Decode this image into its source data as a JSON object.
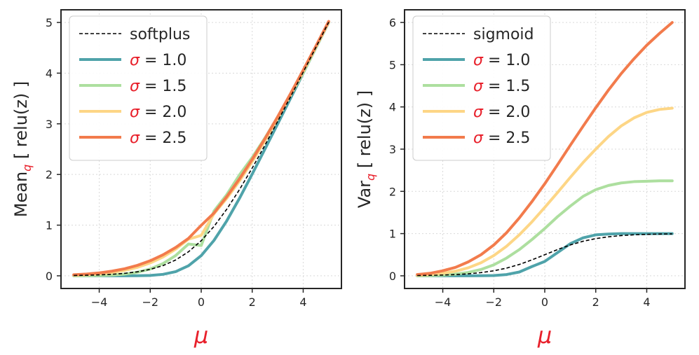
{
  "chart_data": [
    {
      "type": "line",
      "panel": "left",
      "ylabel_prefix": "Mean",
      "ylabel_sub": "q",
      "ylabel_suffix": " [ relu(z) ]",
      "xlabel": "μ",
      "xlim": [
        -5.5,
        5.5
      ],
      "ylim": [
        -0.25,
        5.25
      ],
      "xticks": [
        -4,
        -2,
        0,
        2,
        4
      ],
      "xtick_labels": [
        "−4",
        "−2",
        "0",
        "2",
        "4"
      ],
      "yticks": [
        0,
        1,
        2,
        3,
        4,
        5
      ],
      "ytick_labels": [
        "0",
        "1",
        "2",
        "3",
        "4",
        "5"
      ],
      "grid": true,
      "legend_position": "top-left",
      "x": [
        -5,
        -4.5,
        -4,
        -3.5,
        -3,
        -2.5,
        -2,
        -1.5,
        -1,
        -0.5,
        0,
        0.5,
        1,
        1.5,
        2,
        2.5,
        3,
        3.5,
        4,
        4.5,
        5
      ],
      "series": [
        {
          "name": "softplus",
          "legend_label": "softplus",
          "color": "#000000",
          "style": "dashed",
          "values": [
            0.007,
            0.011,
            0.018,
            0.03,
            0.049,
            0.079,
            0.127,
            0.201,
            0.313,
            0.474,
            0.693,
            0.974,
            1.313,
            1.701,
            2.127,
            2.579,
            3.049,
            3.53,
            4.018,
            4.511,
            5.007
          ]
        },
        {
          "name": "sigma = 1.0",
          "legend_sigma": "σ",
          "legend_value": " = 1.0",
          "color": "#4fa3aa",
          "style": "solid",
          "values": [
            0.0,
            0.0,
            0.0,
            0.0,
            0.0,
            0.002,
            0.008,
            0.029,
            0.083,
            0.198,
            0.399,
            0.698,
            1.083,
            1.529,
            2.008,
            2.502,
            3.0,
            3.5,
            4.0,
            4.5,
            5.0
          ]
        },
        {
          "name": "sigma = 1.5",
          "legend_sigma": "σ",
          "legend_value": " = 1.5",
          "color": "#addf9f",
          "style": "solid",
          "values": [
            0.0,
            0.002,
            0.006,
            0.015,
            0.034,
            0.07,
            0.135,
            0.241,
            0.401,
            0.627,
            0.598,
            1.277,
            1.601,
            1.991,
            2.335,
            2.72,
            3.134,
            3.565,
            4.006,
            4.502,
            5.0
          ]
        },
        {
          "name": "sigma = 2.0",
          "legend_sigma": "σ",
          "legend_value": " = 2.0",
          "color": "#fdd686",
          "style": "solid",
          "values": [
            0.011,
            0.021,
            0.038,
            0.065,
            0.106,
            0.168,
            0.254,
            0.371,
            0.527,
            0.723,
            0.798,
            1.223,
            1.527,
            1.871,
            2.254,
            2.668,
            3.106,
            3.565,
            4.038,
            4.521,
            5.011
          ]
        },
        {
          "name": "sigma = 2.5",
          "legend_sigma": "σ",
          "legend_value": " = 2.5",
          "color": "#f27b4c",
          "style": "solid",
          "values": [
            0.021,
            0.035,
            0.058,
            0.092,
            0.14,
            0.207,
            0.297,
            0.414,
            0.56,
            0.738,
            0.997,
            1.238,
            1.56,
            1.914,
            2.297,
            2.707,
            3.14,
            3.592,
            4.058,
            4.535,
            5.021
          ]
        }
      ]
    },
    {
      "type": "line",
      "panel": "right",
      "ylabel_prefix": "Var",
      "ylabel_sub": "q",
      "ylabel_suffix": " [ relu(z) ]",
      "xlabel": "μ",
      "xlim": [
        -5.5,
        5.5
      ],
      "ylim": [
        -0.3,
        6.3
      ],
      "xticks": [
        -4,
        -2,
        0,
        2,
        4
      ],
      "xtick_labels": [
        "−4",
        "−2",
        "0",
        "2",
        "4"
      ],
      "yticks": [
        0,
        1,
        2,
        3,
        4,
        5,
        6
      ],
      "ytick_labels": [
        "0",
        "1",
        "2",
        "3",
        "4",
        "5",
        "6"
      ],
      "grid": true,
      "legend_position": "top-left",
      "x": [
        -5,
        -4.5,
        -4,
        -3.5,
        -3,
        -2.5,
        -2,
        -1.5,
        -1,
        -0.5,
        0,
        0.5,
        1,
        1.5,
        2,
        2.5,
        3,
        3.5,
        4,
        4.5,
        5
      ],
      "series": [
        {
          "name": "sigmoid",
          "legend_label": "sigmoid",
          "color": "#000000",
          "style": "dashed",
          "values": [
            0.007,
            0.011,
            0.018,
            0.029,
            0.047,
            0.076,
            0.119,
            0.182,
            0.269,
            0.378,
            0.5,
            0.622,
            0.731,
            0.818,
            0.881,
            0.924,
            0.953,
            0.971,
            0.982,
            0.989,
            0.993
          ]
        },
        {
          "name": "sigma = 1.0",
          "legend_sigma": "σ",
          "legend_value": " = 1.0",
          "color": "#4fa3aa",
          "style": "solid",
          "values": [
            0.0,
            0.0,
            0.0,
            0.0,
            0.0,
            0.002,
            0.007,
            0.03,
            0.09,
            0.22,
            0.34,
            0.55,
            0.76,
            0.9,
            0.97,
            0.99,
            1.0,
            1.0,
            1.0,
            1.0,
            1.0
          ]
        },
        {
          "name": "sigma = 1.5",
          "legend_sigma": "σ",
          "legend_value": " = 1.5",
          "color": "#addf9f",
          "style": "solid",
          "values": [
            0.0,
            0.005,
            0.015,
            0.04,
            0.08,
            0.15,
            0.26,
            0.42,
            0.62,
            0.86,
            1.12,
            1.4,
            1.65,
            1.88,
            2.04,
            2.14,
            2.2,
            2.23,
            2.24,
            2.25,
            2.25
          ]
        },
        {
          "name": "sigma = 2.0",
          "legend_sigma": "σ",
          "legend_value": " = 2.0",
          "color": "#fdd686",
          "style": "solid",
          "values": [
            0.015,
            0.03,
            0.06,
            0.11,
            0.19,
            0.31,
            0.48,
            0.7,
            0.97,
            1.28,
            1.62,
            1.97,
            2.33,
            2.68,
            3.0,
            3.3,
            3.55,
            3.74,
            3.87,
            3.94,
            3.97
          ]
        },
        {
          "name": "sigma = 2.5",
          "legend_sigma": "σ",
          "legend_value": " = 2.5",
          "color": "#f27b4c",
          "style": "solid",
          "values": [
            0.03,
            0.06,
            0.12,
            0.2,
            0.33,
            0.5,
            0.73,
            1.02,
            1.37,
            1.76,
            2.18,
            2.63,
            3.09,
            3.54,
            3.98,
            4.4,
            4.79,
            5.14,
            5.46,
            5.74,
            6.0
          ]
        }
      ]
    }
  ],
  "colors": {
    "sigma_symbol": "#e8202b",
    "mu_label": "#e8202b",
    "subscript_q": "#e8202b",
    "axis": "#262626",
    "grid": "#d9d9d9"
  }
}
